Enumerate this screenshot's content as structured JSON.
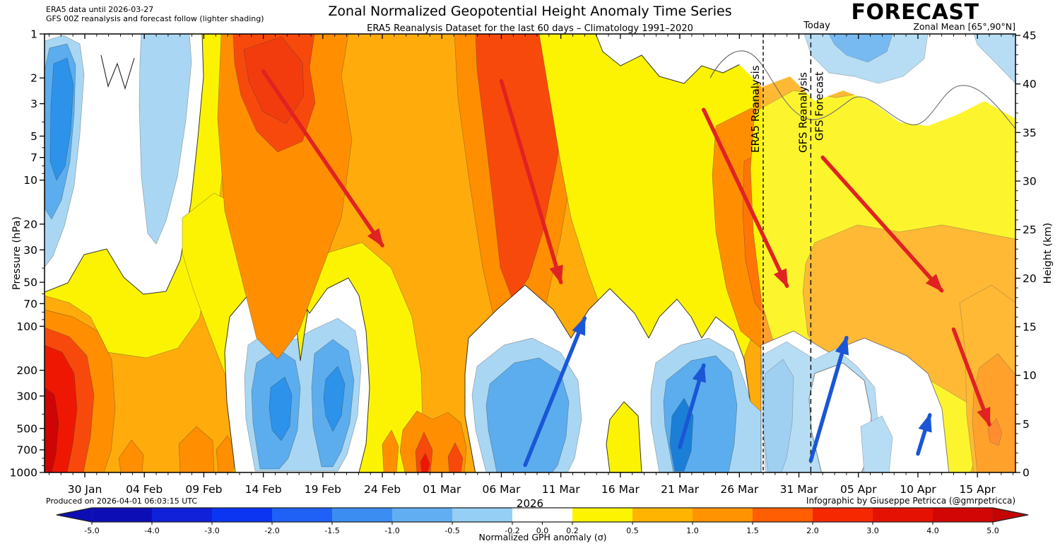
{
  "header": {
    "title": "Zonal Normalized Geopotential Height Anomaly Time Series",
    "subtitle": "ERA5 Reanalysis Dataset for the last 60 days – Climatology 1991–2020",
    "note_line1": "ERA5 data until 2026-03-27",
    "note_line2": "GFS 00Z reanalysis and forecast follow (lighter shading)",
    "forecast_label": "FORECAST",
    "today_label": "Today",
    "zonal_mean_label": "Zonal Mean [65°,90°N]"
  },
  "footer": {
    "produced": "Produced on 2026-04-01 06:03:15 UTC",
    "credit": "Infographic by Giuseppe Petricca (@gmrpetricca)",
    "year": "2026"
  },
  "axes": {
    "pressure": {
      "label": "Pressure (hPa)",
      "major_ticks": [
        1,
        2,
        3,
        5,
        7,
        10,
        20,
        30,
        50,
        70,
        100,
        200,
        300,
        500,
        700,
        1000
      ],
      "minor_ticks": [
        4,
        6,
        8,
        9,
        40,
        60,
        80,
        90,
        400,
        600,
        800,
        900
      ]
    },
    "height": {
      "label": "Height (km)",
      "major_ticks": [
        0,
        5,
        10,
        15,
        20,
        25,
        30,
        35,
        40,
        45
      ]
    },
    "dates": {
      "start_date": "2026-01-30",
      "step_days": 5,
      "tick_labels": [
        "30 Jan",
        "04 Feb",
        "09 Feb",
        "14 Feb",
        "19 Feb",
        "24 Feb",
        "01 Mar",
        "06 Mar",
        "11 Mar",
        "16 Mar",
        "21 Mar",
        "26 Mar",
        "31 Mar",
        "05 Apr",
        "10 Apr",
        "15 Apr"
      ]
    }
  },
  "palette": {
    "o": "#ffab0c",
    "y": "#fcf303",
    "do": "#ff8f00",
    "ro": "#f8490c",
    "ro2": "#ff7606",
    "r": "#ee1802",
    "r2": "#f23c0e",
    "dr": "#cf0404",
    "b1": "#a9d7f3",
    "b2": "#5badee",
    "b3": "#2d92e9",
    "b4": "#1b7fd8",
    "b5": "#8cc6ee",
    "ared": "#e02222",
    "ablue": "#1a56d6"
  },
  "colorbar": {
    "label": "Normalized GPH anomaly (σ)",
    "boundaries": [
      -5.0,
      -4.0,
      -3.0,
      -2.0,
      -1.5,
      -1.0,
      -0.5,
      -0.2,
      0.2,
      0.5,
      1.0,
      1.5,
      2.0,
      3.0,
      4.0,
      5.0
    ],
    "segment_colors": [
      "#0d0db6",
      "#1021d9",
      "#0c35f2",
      "#1f60f6",
      "#3c8df2",
      "#62aef2",
      "#96cff5",
      "#ffffff",
      "#fdf402",
      "#ffb402",
      "#ff9302",
      "#ff5e02",
      "#f52802",
      "#e51204",
      "#d30606"
    ],
    "left_arrow_color": "#0d0db6",
    "right_arrow_color": "#c40404",
    "ticks": [
      {
        "label": "-5.0",
        "t": 0
      },
      {
        "label": "-4.0",
        "t": 1
      },
      {
        "label": "-3.0",
        "t": 2
      },
      {
        "label": "-2.0",
        "t": 3
      },
      {
        "label": "-1.5",
        "t": 4
      },
      {
        "label": "-1.0",
        "t": 5
      },
      {
        "label": "-0.5",
        "t": 6
      },
      {
        "label": "-0.2",
        "t": 7
      },
      {
        "label": "0.0",
        "t": 7.5
      },
      {
        "label": "0.2",
        "t": 8
      },
      {
        "label": "0.5",
        "t": 9
      },
      {
        "label": "1.0",
        "t": 10
      },
      {
        "label": "1.5",
        "t": 11
      },
      {
        "label": "2.0",
        "t": 12
      },
      {
        "label": "3.0",
        "t": 13
      },
      {
        "label": "4.0",
        "t": 14
      },
      {
        "label": "5.0",
        "t": 15
      }
    ]
  },
  "markers": {
    "dividers": [
      {
        "date": "2026-03-28",
        "label_left": "ERA5 Reanalysis",
        "label_right": "",
        "dash": "5 3.5"
      },
      {
        "date": "2026-04-01",
        "label_left": "GFS Reanalysis",
        "label_right": "GFS Forecast",
        "dash": "7 5"
      }
    ],
    "red_arrows": [
      {
        "from": {
          "date": "2026-02-14",
          "hpa": 1.8
        },
        "to": {
          "date": "2026-02-24",
          "hpa": 28
        }
      },
      {
        "from": {
          "date": "2026-03-06",
          "hpa": 2.1
        },
        "to": {
          "date": "2026-03-11",
          "hpa": 50
        }
      },
      {
        "from": {
          "date": "2026-03-23",
          "hpa": 3.3
        },
        "to": {
          "date": "2026-03-30",
          "hpa": 53
        }
      },
      {
        "from": {
          "date": "2026-04-02",
          "hpa": 7
        },
        "to": {
          "date": "2026-04-12",
          "hpa": 57
        }
      },
      {
        "from": {
          "date": "2026-04-13",
          "hpa": 105
        },
        "to": {
          "date": "2026-04-16",
          "hpa": 470
        }
      }
    ],
    "blue_arrows": [
      {
        "from": {
          "date": "2026-03-08",
          "hpa": 890
        },
        "to": {
          "date": "2026-03-13",
          "hpa": 88
        }
      },
      {
        "from": {
          "date": "2026-03-21",
          "hpa": 670
        },
        "to": {
          "date": "2026-03-23",
          "hpa": 185
        }
      },
      {
        "from": {
          "date": "2026-04-01",
          "hpa": 830
        },
        "to": {
          "date": "2026-04-04",
          "hpa": 120
        }
      },
      {
        "from": {
          "date": "2026-04-10",
          "hpa": 745
        },
        "to": {
          "date": "2026-04-11",
          "hpa": 405
        }
      }
    ]
  },
  "chart_data": {
    "type": "filled_contour",
    "title": "Zonal Normalized Geopotential Height Anomaly Time Series",
    "subtitle": "ERA5 Reanalysis Dataset for the last 60 days – Climatology 1991–2020",
    "x_axis": {
      "label": "2026",
      "start": "2026-01-27",
      "end": "2026-04-17",
      "tick_labels": [
        "30 Jan",
        "04 Feb",
        "09 Feb",
        "14 Feb",
        "19 Feb",
        "24 Feb",
        "01 Mar",
        "06 Mar",
        "11 Mar",
        "16 Mar",
        "21 Mar",
        "26 Mar",
        "31 Mar",
        "05 Apr",
        "10 Apr",
        "15 Apr"
      ]
    },
    "y_axis_left": {
      "label": "Pressure (hPa)",
      "scale": "log",
      "range": [
        1,
        1000
      ],
      "ticks": [
        1,
        2,
        3,
        5,
        7,
        10,
        20,
        30,
        50,
        70,
        100,
        200,
        300,
        500,
        700,
        1000
      ]
    },
    "y_axis_right": {
      "label": "Height (km)",
      "range": [
        0,
        45
      ],
      "ticks": [
        0,
        5,
        10,
        15,
        20,
        25,
        30,
        35,
        40,
        45
      ]
    },
    "value_units": "sigma (standard deviations)",
    "contour_levels_sigma": [
      -5,
      -4,
      -3,
      -2,
      -1.5,
      -1,
      -0.5,
      -0.2,
      0.2,
      0.5,
      1,
      1.5,
      2,
      3,
      4,
      5
    ],
    "data_sources": [
      "ERA5 reanalysis through 2026-03-27",
      "GFS 00Z reanalysis and forecast afterwards (lighter shading)"
    ],
    "features": [
      {
        "region": "1–30 hPa, 28 Jan–08 Feb",
        "sign": "negative",
        "peak_sigma": -1.5
      },
      {
        "region": "150–1000 hPa, 27 Jan–02 Feb",
        "sign": "positive",
        "peak_sigma": 4
      },
      {
        "region": "1–5 hPa, 10–17 Feb",
        "sign": "positive",
        "peak_sigma": 2
      },
      {
        "region": "150–900 hPa, 13–19 Feb",
        "sign": "negative",
        "peak_sigma": -1.5
      },
      {
        "region": "500–1000 hPa, 27 Feb–01 Mar",
        "sign": "positive",
        "peak_sigma": 2.5
      },
      {
        "region": "1–70 hPa, 02–12 Mar",
        "sign": "positive",
        "peak_sigma": 2
      },
      {
        "region": "150–1000 hPa, 06–13 Mar",
        "sign": "negative",
        "peak_sigma": -1
      },
      {
        "region": "150–1000 hPa, 19–27 Mar",
        "sign": "negative",
        "peak_sigma": -1.5
      },
      {
        "region": "10–100 hPa, 24 Mar–01 Apr",
        "sign": "positive",
        "peak_sigma": 1.5
      },
      {
        "region": "1–5 hPa, 01–09 Apr (forecast)",
        "sign": "negative",
        "peak_sigma": -1
      },
      {
        "region": "150–1000 hPa, 28 Mar–12 Apr (forecast)",
        "sign": "negative",
        "peak_sigma": -0.7
      },
      {
        "region": "200–700 hPa, 14–17 Apr (forecast)",
        "sign": "positive",
        "peak_sigma": 1.5
      }
    ],
    "annotations": {
      "red_arrows_meaning": "downward-propagating positive anomalies",
      "blue_arrows_meaning": "upward-propagating negative anomalies",
      "vertical_lines": [
        {
          "label": "ERA5 Reanalysis",
          "at": "2026-03-28"
        },
        {
          "label": "GFS Reanalysis / GFS Forecast (Today)",
          "at": "2026-04-01"
        }
      ]
    }
  }
}
